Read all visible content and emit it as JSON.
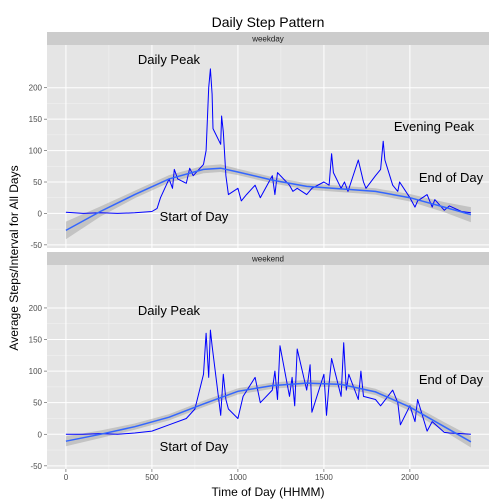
{
  "chart_data": {
    "type": "line",
    "title": "Daily Step Pattern",
    "xlabel": "Time of Day (HHMM)",
    "ylabel": "Average Steps/Interval for All Days",
    "xlim": [
      -110,
      2460
    ],
    "ylim": [
      -55,
      268
    ],
    "x_ticks": [
      0,
      500,
      1000,
      1500,
      2000
    ],
    "y_ticks": [
      -50,
      0,
      50,
      100,
      150,
      200
    ],
    "grid": true,
    "colors": {
      "line": "#0000ff",
      "smooth": "#3366ff",
      "ribbon": "#999999"
    },
    "panels": [
      {
        "label": "weekday",
        "line": {
          "x": [
            0,
            100,
            200,
            300,
            400,
            500,
            530,
            550,
            600,
            620,
            630,
            650,
            700,
            720,
            740,
            800,
            815,
            830,
            840,
            850,
            855,
            900,
            905,
            915,
            930,
            945,
            1000,
            1020,
            1050,
            1100,
            1130,
            1200,
            1215,
            1230,
            1300,
            1320,
            1345,
            1400,
            1430,
            1500,
            1530,
            1545,
            1555,
            1600,
            1620,
            1640,
            1700,
            1730,
            1745,
            1800,
            1830,
            1845,
            1855,
            1900,
            1930,
            1940,
            2000,
            2030,
            2045,
            2100,
            2130,
            2145,
            2200,
            2230,
            2300,
            2355
          ],
          "y": [
            2,
            0,
            1,
            0,
            1,
            3,
            8,
            25,
            55,
            40,
            70,
            55,
            48,
            72,
            60,
            78,
            100,
            200,
            230,
            190,
            135,
            110,
            155,
            130,
            60,
            30,
            40,
            20,
            30,
            45,
            25,
            60,
            30,
            65,
            45,
            35,
            40,
            30,
            40,
            50,
            45,
            95,
            65,
            40,
            50,
            35,
            85,
            50,
            40,
            60,
            70,
            115,
            85,
            45,
            35,
            50,
            25,
            10,
            20,
            30,
            10,
            22,
            5,
            12,
            3,
            1
          ]
        },
        "smooth": {
          "x": [
            0,
            200,
            400,
            600,
            800,
            900,
            1000,
            1200,
            1400,
            1600,
            1800,
            2000,
            2200,
            2355
          ],
          "y": [
            -27,
            3,
            30,
            55,
            70,
            72,
            66,
            53,
            43,
            39,
            35,
            25,
            10,
            -2
          ],
          "band": [
            14,
            8,
            6,
            6,
            6,
            6,
            5,
            5,
            5,
            5,
            5,
            6,
            8,
            12
          ]
        },
        "annotations": [
          "Daily Peak",
          "Evening Peak",
          "End of Day",
          "Start of Day"
        ]
      },
      {
        "label": "weekend",
        "line": {
          "x": [
            0,
            100,
            200,
            300,
            400,
            500,
            600,
            700,
            750,
            800,
            815,
            830,
            840,
            850,
            900,
            915,
            930,
            945,
            1000,
            1030,
            1100,
            1130,
            1200,
            1215,
            1230,
            1245,
            1300,
            1315,
            1330,
            1345,
            1400,
            1420,
            1430,
            1500,
            1515,
            1530,
            1545,
            1600,
            1615,
            1630,
            1645,
            1700,
            1715,
            1730,
            1800,
            1830,
            1900,
            1930,
            1945,
            2000,
            2030,
            2045,
            2100,
            2130,
            2200,
            2230,
            2300,
            2355
          ],
          "y": [
            0,
            0,
            1,
            0,
            2,
            5,
            15,
            25,
            40,
            95,
            160,
            90,
            165,
            140,
            30,
            95,
            55,
            40,
            25,
            60,
            90,
            50,
            70,
            100,
            55,
            140,
            60,
            90,
            45,
            135,
            70,
            110,
            35,
            95,
            30,
            80,
            120,
            60,
            145,
            70,
            95,
            55,
            100,
            60,
            55,
            45,
            70,
            50,
            15,
            45,
            20,
            55,
            5,
            20,
            3,
            2,
            1,
            0
          ]
        },
        "smooth": {
          "x": [
            0,
            200,
            400,
            600,
            800,
            1000,
            1200,
            1400,
            1600,
            1800,
            2000,
            2200,
            2355
          ],
          "y": [
            -11,
            0,
            12,
            27,
            48,
            68,
            77,
            81,
            79,
            67,
            43,
            12,
            -12
          ],
          "band": [
            8,
            6,
            5,
            5,
            5,
            5,
            5,
            5,
            5,
            5,
            6,
            7,
            9
          ]
        },
        "annotations": [
          "Daily Peak",
          "End of Day",
          "Start of Day"
        ]
      }
    ]
  }
}
